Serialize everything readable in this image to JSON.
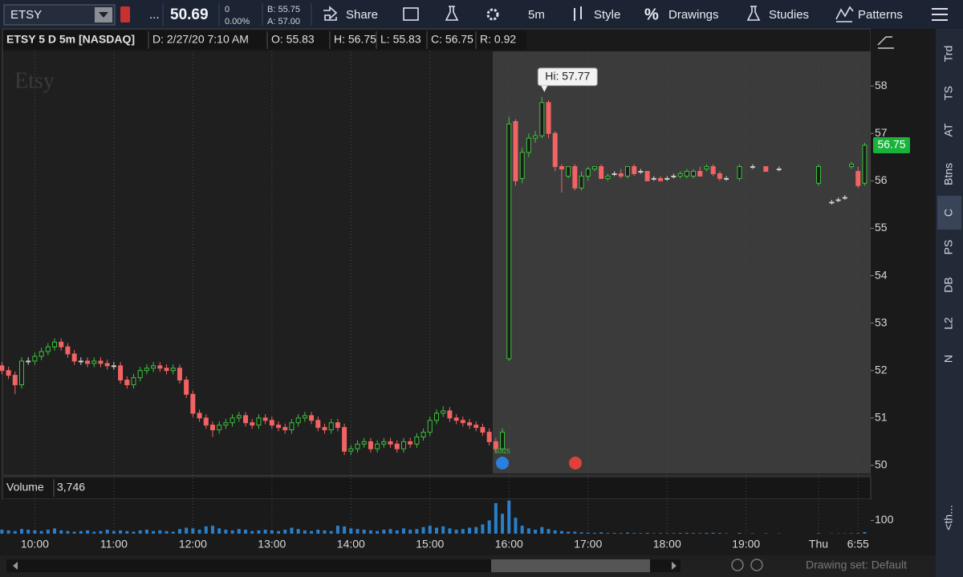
{
  "toolbar": {
    "symbol": "ETSY",
    "more": "...",
    "last": "50.69",
    "change": "0",
    "change_pct": "0.00%",
    "bid": "B: 55.75",
    "ask": "A: 57.00",
    "share": "Share",
    "interval": "5m",
    "style": "Style",
    "drawings_icon": "%",
    "drawings": "Drawings",
    "studies": "Studies",
    "patterns": "Patterns"
  },
  "header": {
    "title": "ETSY 5 D 5m [NASDAQ]",
    "date": "D: 2/27/20 7:10 AM",
    "open": "O: 55.83",
    "high": "H: 56.75",
    "low": "L: 55.83",
    "close": "C: 56.75",
    "range": "R: 0.92"
  },
  "side_tabs": [
    "Trd",
    "TS",
    "AT",
    "Btns",
    "C",
    "PS",
    "DB",
    "L2",
    "N",
    "<th..."
  ],
  "volume_panel": {
    "label": "Volume",
    "value": "3,746"
  },
  "footer": {
    "drawing_set": "Drawing set: Default"
  },
  "chart_data": {
    "type": "candlestick",
    "watermark": "Etsy",
    "high_label": "Hi: 57.77",
    "small_label": "50.25",
    "last_price": 56.75,
    "up_color": "#3cc13c",
    "down_color": "#f26363",
    "volume_color": "#2a7fc9",
    "grid": true,
    "x": [
      575,
      580,
      585,
      590,
      595,
      600,
      605,
      610,
      615,
      620,
      625,
      630,
      635,
      640,
      645,
      650,
      655,
      660,
      665,
      670,
      675,
      680,
      685,
      690,
      695,
      700,
      705,
      710,
      715,
      720,
      725,
      730,
      735,
      740,
      745,
      750,
      755,
      760,
      765,
      770,
      775,
      780,
      785,
      790,
      795,
      800,
      805,
      810,
      815,
      820,
      825,
      830,
      835,
      840,
      845,
      850,
      855,
      860,
      865,
      870,
      875,
      880,
      885,
      890,
      895,
      900,
      905,
      910,
      915,
      920,
      925,
      930,
      935,
      940,
      945,
      950,
      955,
      960,
      965,
      970,
      975,
      980,
      985,
      990,
      995,
      1000,
      1005,
      1010,
      1015,
      1020,
      1025,
      1030,
      1035,
      1040,
      1045,
      1050,
      1055,
      1060,
      1065,
      1070,
      1075,
      1080,
      1085,
      1090,
      1095,
      1100,
      1105,
      1110,
      1115,
      1120,
      1125,
      1135,
      1145,
      1155,
      1165,
      1195,
      1205,
      1210,
      1215,
      1220,
      1225,
      1230
    ],
    "open": [
      52.1,
      52.0,
      51.9,
      51.7,
      52.2,
      52.2,
      52.3,
      52.4,
      52.5,
      52.6,
      52.5,
      52.35,
      52.2,
      52.2,
      52.15,
      52.2,
      52.15,
      52.1,
      52.1,
      51.8,
      51.7,
      51.85,
      52.0,
      52.05,
      52.1,
      52.05,
      52.0,
      52.05,
      51.8,
      51.5,
      51.1,
      51.0,
      50.85,
      50.75,
      50.85,
      50.9,
      51.0,
      51.05,
      50.9,
      50.85,
      51.0,
      50.95,
      50.85,
      50.8,
      50.75,
      50.9,
      51.0,
      51.05,
      50.95,
      50.8,
      50.75,
      50.9,
      50.8,
      50.3,
      50.35,
      50.45,
      50.5,
      50.35,
      50.45,
      50.5,
      50.45,
      50.35,
      50.5,
      50.45,
      50.6,
      50.7,
      50.95,
      51.1,
      51.15,
      51.0,
      50.95,
      50.9,
      50.85,
      50.8,
      50.7,
      50.5,
      50.35,
      52.25,
      57.25,
      56.05,
      56.6,
      56.9,
      56.95,
      57.65,
      57.0,
      56.3,
      56.1,
      56.3,
      55.85,
      56.1,
      56.25,
      56.3,
      56.05,
      56.15,
      56.15,
      56.1,
      56.3,
      56.2,
      56.2,
      56.05,
      56.05,
      56.05,
      56.1,
      56.1,
      56.1,
      56.1,
      56.2,
      56.25,
      56.3,
      56.15,
      56.05,
      56.05,
      56.3,
      56.3,
      56.25,
      55.95,
      55.55,
      55.6,
      55.65,
      56.3,
      56.2,
      55.95
    ],
    "high": [
      52.18,
      52.08,
      51.98,
      52.28,
      52.28,
      52.38,
      52.48,
      52.58,
      52.68,
      52.68,
      52.58,
      52.43,
      52.28,
      52.28,
      52.28,
      52.28,
      52.23,
      52.18,
      52.18,
      51.88,
      51.93,
      52.08,
      52.13,
      52.18,
      52.18,
      52.13,
      52.13,
      52.13,
      51.88,
      51.58,
      51.18,
      51.08,
      50.93,
      50.93,
      50.98,
      51.08,
      51.13,
      51.13,
      50.98,
      51.08,
      51.08,
      51.03,
      50.93,
      50.88,
      50.98,
      51.08,
      51.13,
      51.13,
      51.03,
      50.88,
      50.98,
      50.98,
      50.88,
      50.43,
      50.53,
      50.58,
      50.58,
      50.53,
      50.58,
      50.58,
      50.53,
      50.58,
      50.58,
      50.68,
      50.78,
      51.03,
      51.18,
      51.25,
      51.23,
      51.08,
      51.03,
      50.98,
      50.93,
      50.88,
      50.78,
      50.58,
      50.78,
      57.35,
      57.3,
      56.7,
      57.0,
      57.05,
      57.77,
      57.7,
      57.05,
      56.35,
      56.3,
      56.35,
      56.2,
      56.3,
      56.3,
      56.35,
      56.15,
      56.2,
      56.25,
      56.3,
      56.35,
      56.25,
      56.2,
      56.1,
      56.1,
      56.1,
      56.15,
      56.2,
      56.25,
      56.25,
      56.3,
      56.35,
      56.35,
      56.2,
      56.1,
      56.35,
      56.35,
      56.3,
      56.3,
      56.35,
      55.6,
      55.65,
      55.7,
      56.4,
      56.3,
      56.8
    ],
    "low": [
      51.92,
      51.82,
      51.5,
      51.62,
      52.12,
      52.12,
      52.22,
      52.32,
      52.42,
      52.42,
      52.27,
      52.12,
      52.12,
      52.07,
      52.07,
      52.07,
      52.02,
      52.02,
      51.72,
      51.62,
      51.62,
      51.77,
      51.92,
      51.97,
      51.97,
      51.92,
      51.92,
      51.72,
      51.42,
      51.02,
      50.92,
      50.77,
      50.6,
      50.67,
      50.77,
      50.82,
      50.92,
      50.82,
      50.77,
      50.77,
      50.87,
      50.77,
      50.72,
      50.67,
      50.67,
      50.82,
      50.92,
      50.87,
      50.72,
      50.67,
      50.67,
      50.72,
      50.22,
      50.22,
      50.27,
      50.37,
      50.27,
      50.27,
      50.37,
      50.37,
      50.27,
      50.27,
      50.37,
      50.37,
      50.52,
      50.62,
      50.87,
      51.02,
      50.92,
      50.87,
      50.82,
      50.77,
      50.72,
      50.62,
      50.42,
      50.27,
      50.27,
      52.2,
      55.9,
      55.95,
      56.5,
      56.8,
      56.9,
      56.9,
      56.2,
      55.75,
      56.05,
      55.8,
      55.8,
      56.0,
      56.2,
      56.05,
      56.0,
      56.1,
      56.05,
      56.05,
      56.1,
      56.15,
      56.0,
      56.0,
      56.0,
      56.0,
      56.05,
      56.05,
      56.05,
      56.05,
      56.1,
      56.2,
      56.1,
      56.0,
      56.0,
      56.0,
      56.25,
      56.2,
      56.2,
      55.9,
      55.5,
      55.55,
      55.6,
      56.25,
      55.85,
      55.9
    ],
    "close": [
      52.0,
      51.9,
      51.7,
      52.2,
      52.2,
      52.3,
      52.4,
      52.5,
      52.6,
      52.5,
      52.35,
      52.2,
      52.2,
      52.15,
      52.2,
      52.15,
      52.1,
      52.1,
      51.8,
      51.7,
      51.85,
      52.0,
      52.05,
      52.1,
      52.05,
      52.0,
      52.05,
      51.8,
      51.5,
      51.1,
      51.0,
      50.85,
      50.75,
      50.85,
      50.9,
      51.0,
      51.05,
      50.9,
      50.85,
      51.0,
      50.95,
      50.85,
      50.8,
      50.75,
      50.9,
      51.0,
      51.05,
      50.95,
      50.8,
      50.75,
      50.9,
      50.8,
      50.3,
      50.35,
      50.45,
      50.5,
      50.35,
      50.45,
      50.5,
      50.45,
      50.35,
      50.5,
      50.45,
      50.6,
      50.7,
      50.95,
      51.1,
      51.15,
      51.0,
      50.95,
      50.9,
      50.85,
      50.8,
      50.7,
      50.5,
      50.35,
      50.7,
      57.2,
      56.0,
      56.6,
      56.9,
      56.95,
      57.65,
      57.0,
      56.3,
      56.25,
      56.3,
      55.85,
      56.1,
      56.25,
      56.3,
      56.05,
      56.1,
      56.15,
      56.1,
      56.3,
      56.15,
      56.2,
      56.0,
      56.05,
      56.0,
      56.05,
      56.1,
      56.15,
      56.2,
      56.2,
      56.1,
      56.3,
      56.15,
      56.05,
      56.05,
      56.3,
      56.3,
      56.2,
      56.25,
      56.3,
      55.55,
      55.6,
      55.65,
      56.35,
      55.9,
      56.75
    ],
    "volume": [
      30,
      25,
      20,
      35,
      30,
      25,
      20,
      30,
      40,
      25,
      20,
      15,
      20,
      25,
      15,
      20,
      30,
      20,
      25,
      20,
      15,
      25,
      30,
      20,
      25,
      20,
      15,
      35,
      45,
      40,
      30,
      55,
      60,
      40,
      30,
      25,
      35,
      30,
      20,
      25,
      30,
      25,
      20,
      30,
      45,
      35,
      25,
      20,
      30,
      25,
      20,
      60,
      55,
      40,
      35,
      30,
      25,
      20,
      30,
      35,
      25,
      40,
      30,
      35,
      50,
      60,
      45,
      55,
      40,
      30,
      35,
      45,
      50,
      70,
      100,
      230,
      150,
      250,
      120,
      60,
      40,
      30,
      50,
      35,
      25,
      20,
      15,
      15,
      10,
      8,
      6,
      10,
      5,
      6,
      5,
      8,
      5,
      4,
      6,
      3,
      4,
      3,
      4,
      5,
      6,
      5,
      4,
      6,
      7,
      5,
      3,
      6,
      3,
      3,
      2,
      4,
      2,
      2,
      2,
      3,
      4,
      12
    ],
    "xlim": [
      576,
      1234
    ],
    "xticks": [
      {
        "value": 600,
        "label": "10:00"
      },
      {
        "value": 660,
        "label": "11:00"
      },
      {
        "value": 720,
        "label": "12:00"
      },
      {
        "value": 780,
        "label": "13:00"
      },
      {
        "value": 840,
        "label": "14:00"
      },
      {
        "value": 900,
        "label": "15:00"
      },
      {
        "value": 960,
        "label": "16:00"
      },
      {
        "value": 1020,
        "label": "17:00"
      },
      {
        "value": 1080,
        "label": "18:00"
      },
      {
        "value": 1140,
        "label": "19:00"
      },
      {
        "value": 1195,
        "label": "Thu"
      },
      {
        "value": 1225,
        "label": "6:55"
      }
    ],
    "ylim": [
      49.83,
      58.73
    ],
    "yticks": [
      50,
      51,
      52,
      53,
      54,
      55,
      56,
      57,
      58
    ],
    "volume_ylim": [
      0,
      260
    ],
    "volume_yticks": [
      100
    ]
  }
}
